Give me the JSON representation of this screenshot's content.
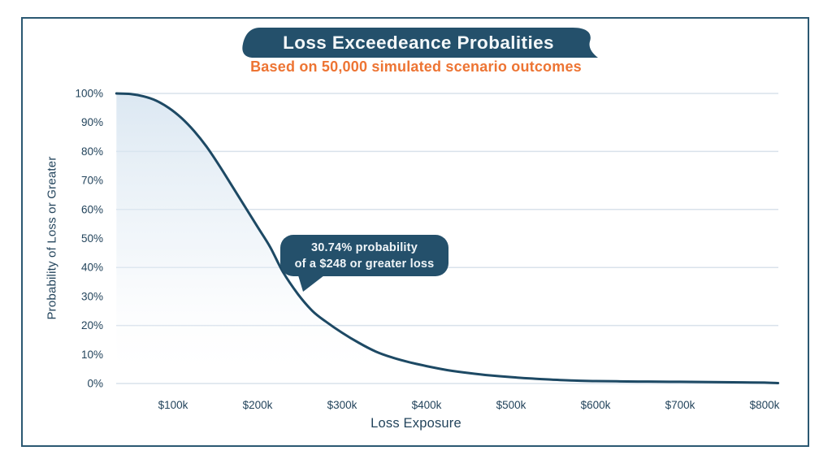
{
  "header": {
    "title": "Loss Exceedeance Probalities",
    "subtitle": "Based on 50,000 simulated scenario outcomes"
  },
  "annotation_tooltip": {
    "line1": "30.74% probability",
    "line2": "of a $248 or greater loss"
  },
  "axes": {
    "x_title": "Loss Exposure",
    "y_title": "Probability of Loss or Greater"
  },
  "colors": {
    "navy": "#24506B",
    "curve": "#1D4964",
    "border": "#2B5872",
    "orange": "#ED7433",
    "gridline": "#D9E2EB",
    "text": "#23445C",
    "area_top": "#D3E2EF",
    "title_text": "#F4F8FA"
  },
  "chart_data": {
    "type": "area",
    "title": "Loss Exceedeance Probalities",
    "subtitle": "Based on 50,000 simulated scenario outcomes",
    "xlabel": "Loss Exposure",
    "ylabel": "Probability of Loss or Greater",
    "x_unit": "USD thousands",
    "y_unit": "percent",
    "xlim_k": [
      33,
      816
    ],
    "ylim_pct": [
      0,
      100
    ],
    "grid": "horizontal-only",
    "legend": "none",
    "gridlines_pct": [
      0,
      20,
      40,
      60,
      80,
      100
    ],
    "x_ticks": [
      {
        "label": "$100k",
        "value_k": 100
      },
      {
        "label": "$200k",
        "value_k": 200
      },
      {
        "label": "$300k",
        "value_k": 300
      },
      {
        "label": "$400k",
        "value_k": 400
      },
      {
        "label": "$500k",
        "value_k": 500
      },
      {
        "label": "$600k",
        "value_k": 600
      },
      {
        "label": "$700k",
        "value_k": 700
      },
      {
        "label": "$800k",
        "value_k": 800
      }
    ],
    "y_ticks": [
      {
        "label": "100%",
        "value_pct": 100
      },
      {
        "label": "90%",
        "value_pct": 90
      },
      {
        "label": "80%",
        "value_pct": 80
      },
      {
        "label": "70%",
        "value_pct": 70
      },
      {
        "label": "60%",
        "value_pct": 60
      },
      {
        "label": "50%",
        "value_pct": 50
      },
      {
        "label": "40%",
        "value_pct": 40
      },
      {
        "label": "30%",
        "value_pct": 30
      },
      {
        "label": "20%",
        "value_pct": 20
      },
      {
        "label": "10%",
        "value_pct": 10
      },
      {
        "label": "0%",
        "value_pct": 0
      }
    ],
    "series": [
      {
        "name": "Loss exceedance probability",
        "points_k_pct": [
          [
            33,
            100
          ],
          [
            50,
            99.8
          ],
          [
            65,
            99
          ],
          [
            80,
            97.5
          ],
          [
            95,
            95
          ],
          [
            110,
            91.5
          ],
          [
            125,
            87
          ],
          [
            140,
            81.5
          ],
          [
            155,
            75
          ],
          [
            170,
            68
          ],
          [
            185,
            61
          ],
          [
            200,
            54
          ],
          [
            215,
            47
          ],
          [
            230,
            38.5
          ],
          [
            248,
            30.74
          ],
          [
            265,
            25
          ],
          [
            280,
            21.5
          ],
          [
            300,
            17.5
          ],
          [
            320,
            14
          ],
          [
            340,
            11
          ],
          [
            360,
            8.9
          ],
          [
            380,
            7.3
          ],
          [
            400,
            6.0
          ],
          [
            425,
            4.6
          ],
          [
            450,
            3.6
          ],
          [
            475,
            2.8
          ],
          [
            500,
            2.2
          ],
          [
            525,
            1.7
          ],
          [
            550,
            1.3
          ],
          [
            575,
            1.0
          ],
          [
            600,
            0.85
          ],
          [
            625,
            0.75
          ],
          [
            650,
            0.68
          ],
          [
            675,
            0.62
          ],
          [
            700,
            0.58
          ],
          [
            725,
            0.52
          ],
          [
            750,
            0.45
          ],
          [
            775,
            0.38
          ],
          [
            800,
            0.3
          ],
          [
            816,
            0.15
          ]
        ]
      }
    ],
    "annotation": {
      "x_k": 248,
      "probability_pct": 30.74,
      "text": [
        "30.74% probability",
        "of a $248 or greater loss"
      ]
    }
  }
}
